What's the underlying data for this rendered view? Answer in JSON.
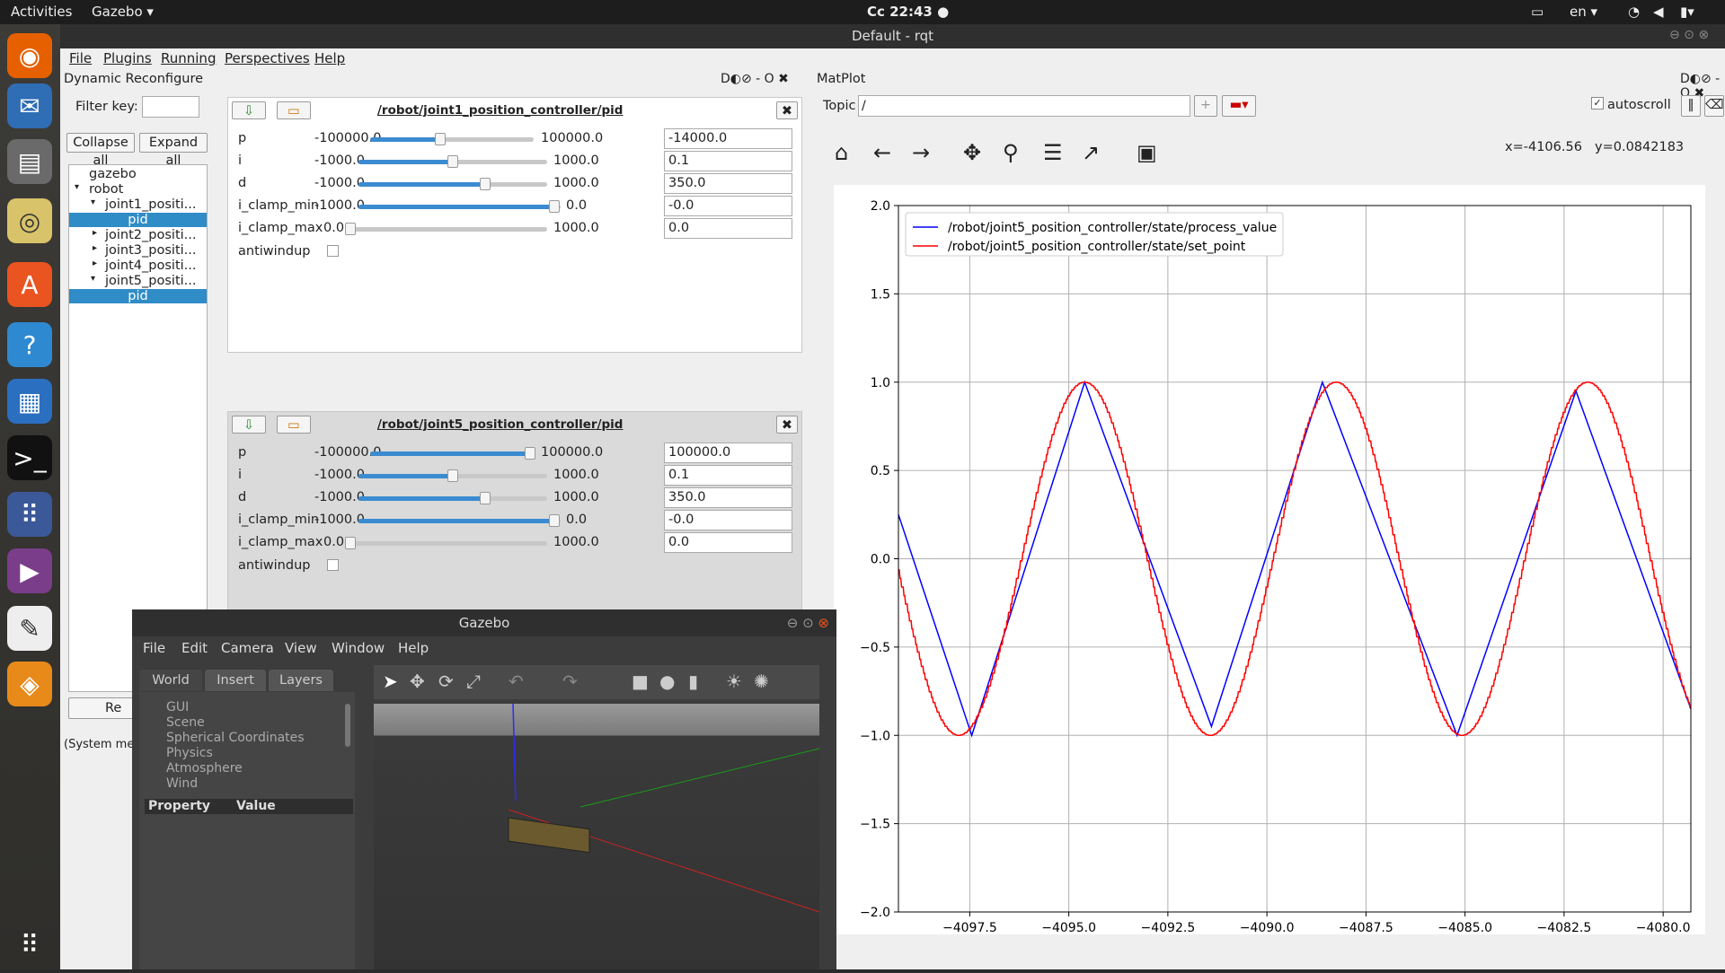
{
  "topbar": {
    "activities": "Activities",
    "app": "Gazebo ▾",
    "clock": "Cc 22:43 ●",
    "lang": "en ▾"
  },
  "rqt": {
    "title": "Default - rqt",
    "menu": [
      "File",
      "Plugins",
      "Running",
      "Perspectives",
      "Help"
    ]
  },
  "dr": {
    "title": "Dynamic Reconfigure",
    "title_btns": "D◐⊘ - O ✖",
    "filter_label": "Filter key:",
    "collapse": "Collapse all",
    "expand": "Expand all",
    "refresh": "Re",
    "status": "(System mes",
    "tree": [
      "gazebo",
      "robot",
      "joint1_positi...",
      "pid",
      "joint2_positi...",
      "joint3_positi...",
      "joint4_positi...",
      "joint5_positi...",
      "pid"
    ],
    "panels": [
      {
        "title": "/robot/joint1_position_controller/pid",
        "rows": [
          {
            "label": "p",
            "min": "-100000.0",
            "max": "100000.0",
            "value": "-14000.0"
          },
          {
            "label": "i",
            "min": "-1000.0",
            "max": "1000.0",
            "value": "0.1"
          },
          {
            "label": "d",
            "min": "-1000.0",
            "max": "1000.0",
            "value": "350.0"
          },
          {
            "label": "i_clamp_min",
            "min": "-1000.0",
            "max": "0.0",
            "value": "-0.0"
          },
          {
            "label": "i_clamp_max",
            "min": "0.0",
            "max": "1000.0",
            "value": "0.0"
          }
        ],
        "antiwindup": "antiwindup"
      },
      {
        "title": "/robot/joint5_position_controller/pid",
        "rows": [
          {
            "label": "p",
            "min": "-100000.0",
            "max": "100000.0",
            "value": "100000.0"
          },
          {
            "label": "i",
            "min": "-1000.0",
            "max": "1000.0",
            "value": "0.1"
          },
          {
            "label": "d",
            "min": "-1000.0",
            "max": "1000.0",
            "value": "350.0"
          },
          {
            "label": "i_clamp_min",
            "min": "-1000.0",
            "max": "0.0",
            "value": "-0.0"
          },
          {
            "label": "i_clamp_max",
            "min": "0.0",
            "max": "1000.0",
            "value": "0.0"
          }
        ],
        "antiwindup": "antiwindup"
      }
    ]
  },
  "mp": {
    "title": "MatPlot",
    "title_btns": "D◐⊘ - O ✖",
    "topic_label": "Topic",
    "topic_value": "/",
    "autoscroll": "autoscroll",
    "coords_x": "x=-4106.56",
    "coords_y": "y=0.0842183"
  },
  "chart_data": {
    "type": "line",
    "xlim": [
      -4099.3,
      -4079.3
    ],
    "ylim": [
      -2.0,
      2.0
    ],
    "xticks": [
      "−4097.5",
      "−4095.0",
      "−4092.5",
      "−4090.0",
      "−4087.5",
      "−4085.0",
      "−4082.5",
      "−4080.0"
    ],
    "xtick_values": [
      -4097.5,
      -4095.0,
      -4092.5,
      -4090.0,
      -4087.5,
      -4085.0,
      -4082.5,
      -4080.0
    ],
    "yticks": [
      "2.0",
      "1.5",
      "1.0",
      "0.5",
      "0.0",
      "−0.5",
      "−1.0",
      "−1.5",
      "−2.0"
    ],
    "ytick_values": [
      2.0,
      1.5,
      1.0,
      0.5,
      0.0,
      -0.5,
      -1.0,
      -1.5,
      -2.0
    ],
    "grid": true,
    "legend": "top-left",
    "series": [
      {
        "name": "/robot/joint5_position_controller/state/process_value",
        "color": "#0000ff",
        "x": [
          -4099.3,
          -4097.45,
          -4094.6,
          -4091.4,
          -4088.6,
          -4085.2,
          -4082.2,
          -4079.3
        ],
        "y": [
          0.25,
          -1.0,
          1.0,
          -0.95,
          1.0,
          -1.0,
          0.95,
          -0.85
        ]
      },
      {
        "name": "/robot/joint5_position_controller/state/set_point",
        "color": "#ff0000",
        "sine": {
          "amp": 1.0,
          "period": 6.35,
          "peak": -4094.6
        }
      }
    ]
  },
  "gazebo": {
    "title": "Gazebo",
    "menu": [
      "File",
      "Edit",
      "Camera",
      "View",
      "Window",
      "Help"
    ],
    "tabs": [
      "World",
      "Insert",
      "Layers"
    ],
    "world_items": [
      "GUI",
      "Scene",
      "Spherical Coordinates",
      "Physics",
      "Atmosphere",
      "Wind"
    ],
    "prop_header": "Property",
    "value_header": "Value"
  }
}
